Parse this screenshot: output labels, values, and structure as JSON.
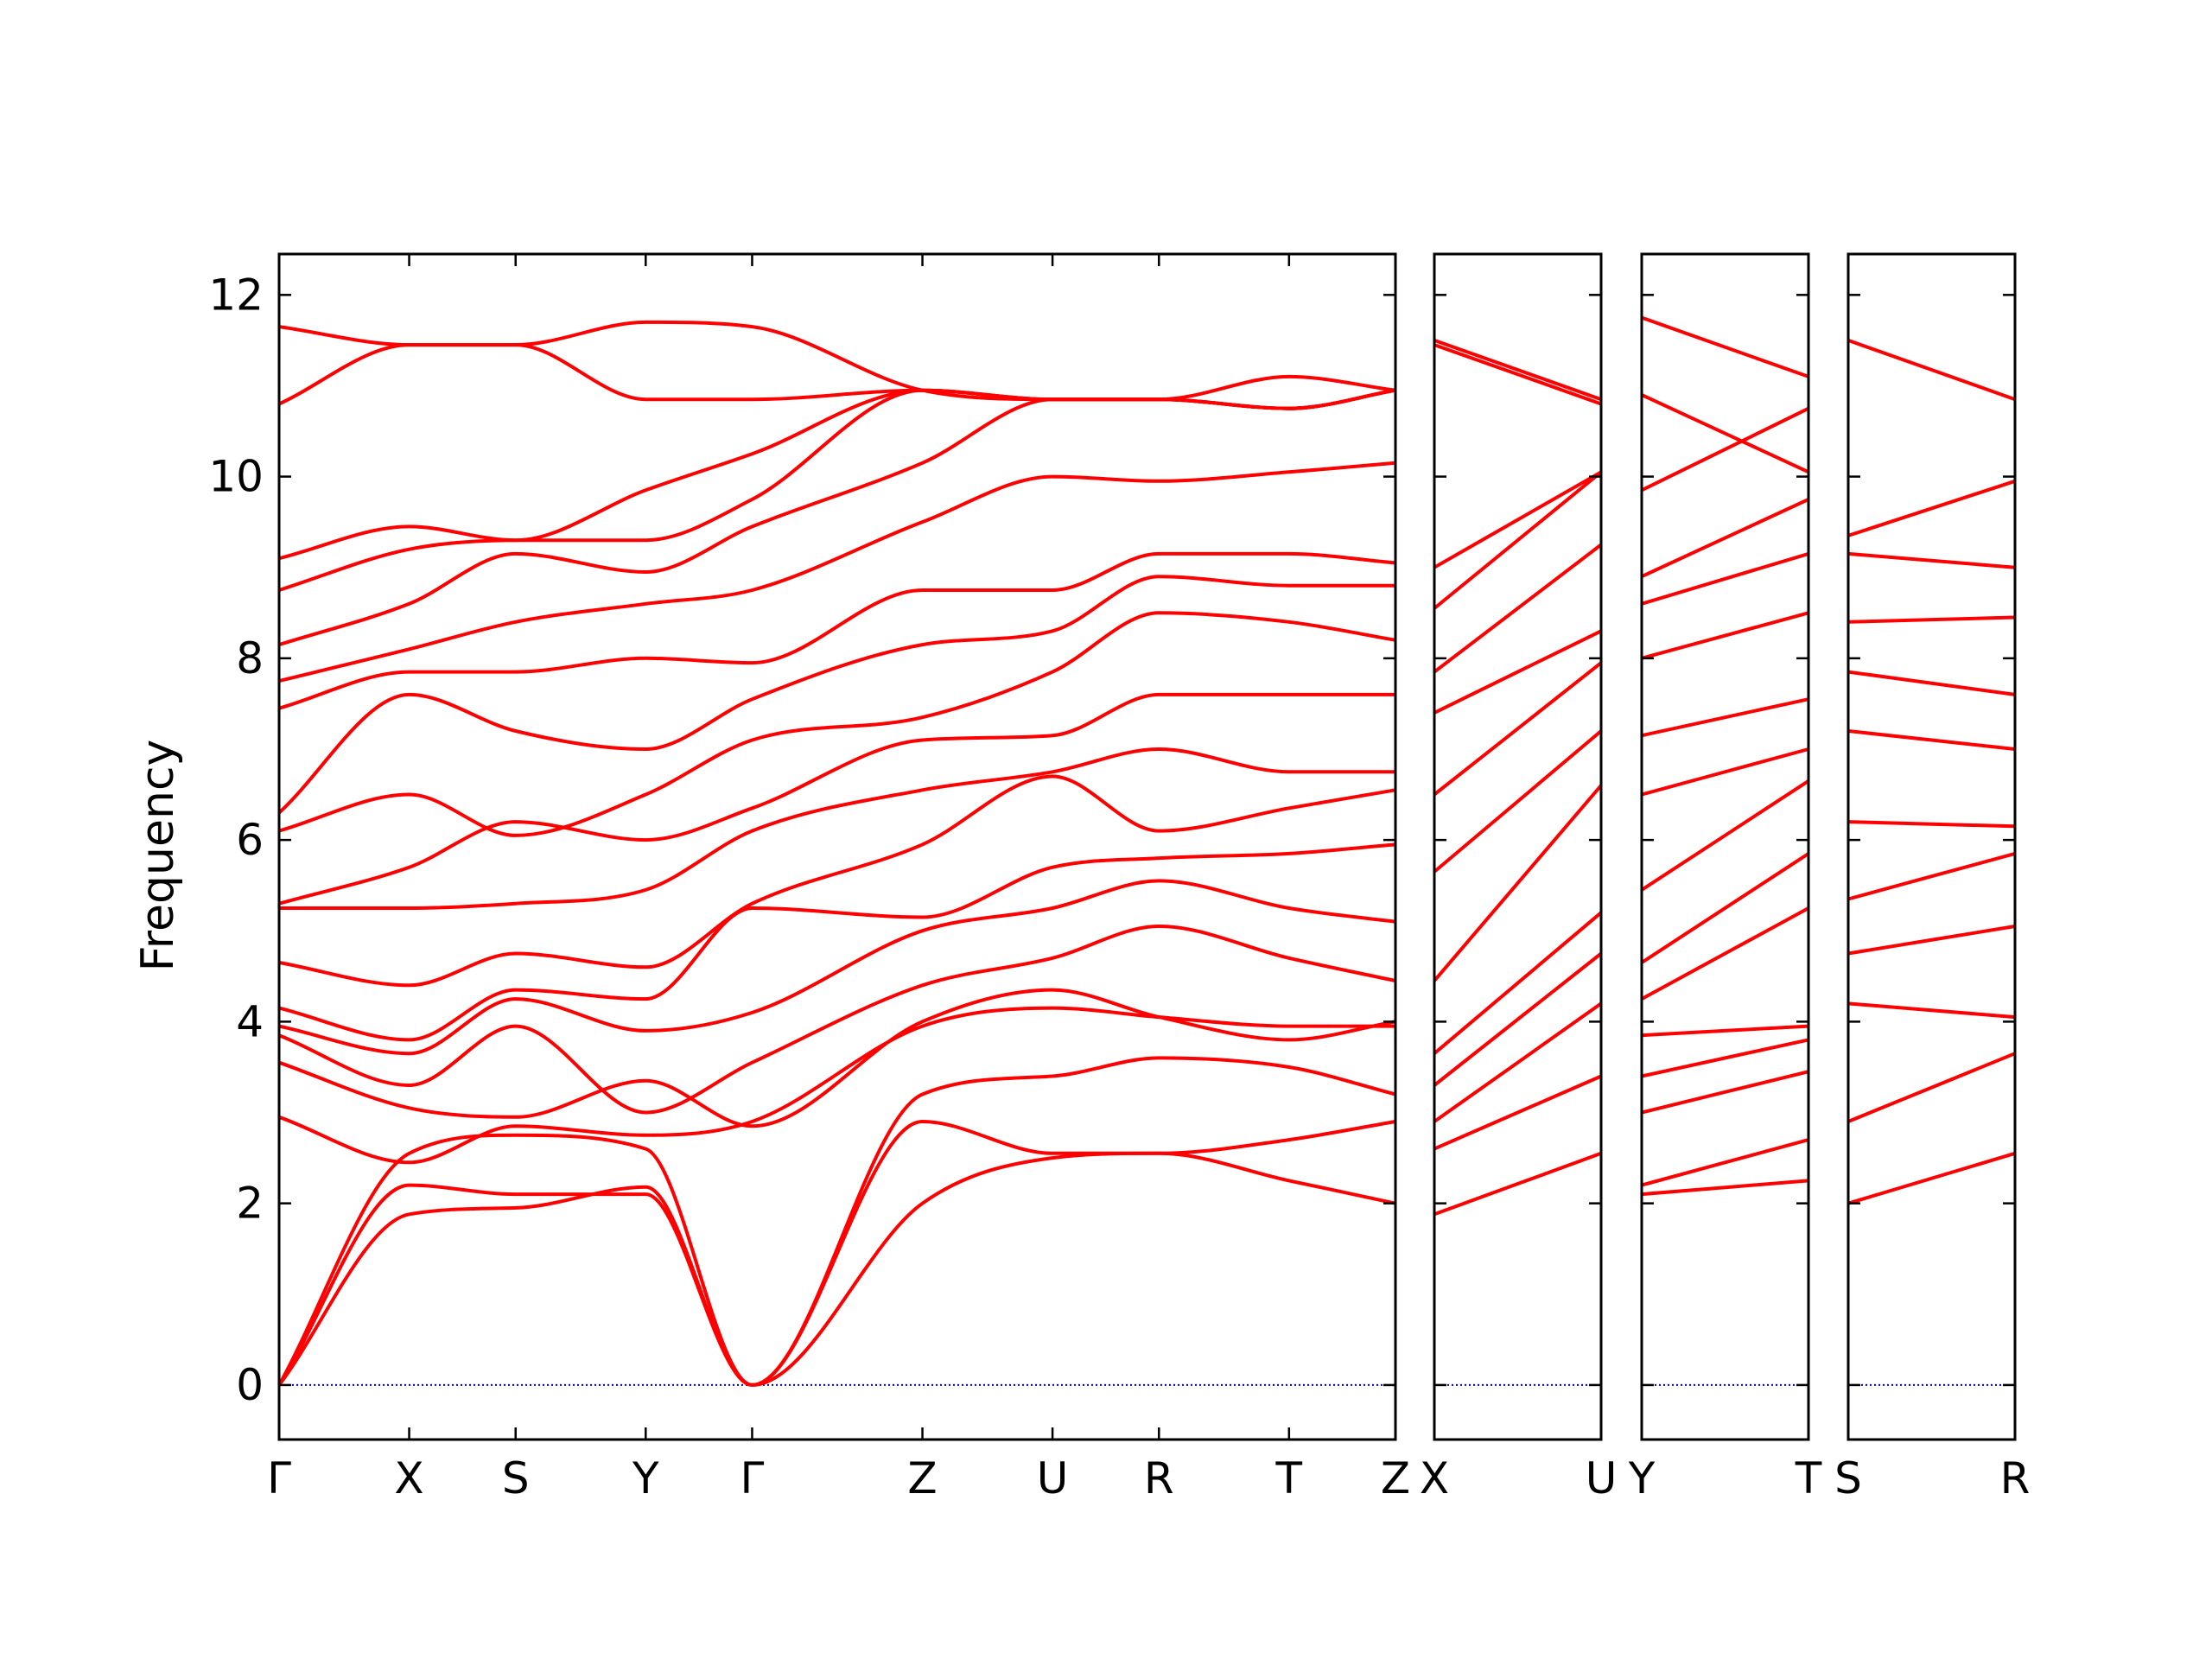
{
  "chart_data": {
    "type": "line",
    "title": "",
    "xlabel": "",
    "ylabel": "Frequency",
    "ylim": [
      -0.6,
      12.45
    ],
    "yticks": [
      "0",
      "2",
      "4",
      "6",
      "8",
      "10",
      "12"
    ],
    "grid": false,
    "legend": "none",
    "colors": {
      "bands": "#ff0000",
      "zero_line": "#0000cc",
      "axes": "#000000"
    },
    "panels": [
      {
        "path": [
          "Γ",
          "X",
          "S",
          "Y",
          "Γ",
          "Z",
          "U",
          "R",
          "T",
          "Z"
        ],
        "x": [
          0,
          0.55,
          1.0,
          1.55,
          2.0,
          2.72,
          3.27,
          3.72,
          4.27,
          4.72
        ],
        "bands": [
          [
            0,
            1.88,
            1.95,
            2.18,
            0,
            2.0,
            2.5,
            2.55,
            2.25,
            2.0
          ],
          [
            0,
            2.2,
            2.1,
            2.1,
            0,
            2.9,
            2.55,
            2.55,
            2.7,
            2.9
          ],
          [
            0,
            2.55,
            2.75,
            2.6,
            0,
            3.2,
            3.4,
            3.6,
            3.5,
            3.2
          ],
          [
            2.95,
            2.45,
            2.85,
            2.75,
            2.9,
            3.95,
            4.15,
            4.05,
            3.95,
            3.95
          ],
          [
            3.55,
            3.05,
            2.95,
            3.35,
            2.85,
            4.0,
            4.35,
            4.05,
            3.8,
            4.0
          ],
          [
            3.85,
            3.3,
            3.95,
            3.0,
            3.55,
            4.4,
            4.7,
            5.05,
            4.7,
            4.45
          ],
          [
            3.95,
            3.65,
            4.25,
            3.9,
            4.1,
            5.0,
            5.25,
            5.55,
            5.25,
            5.1
          ],
          [
            4.15,
            3.8,
            4.35,
            4.25,
            5.25,
            5.15,
            5.7,
            5.8,
            5.85,
            5.95
          ],
          [
            4.65,
            4.4,
            4.75,
            4.6,
            5.3,
            5.95,
            6.7,
            6.1,
            6.35,
            6.55
          ],
          [
            5.25,
            5.25,
            5.3,
            5.45,
            6.1,
            6.55,
            6.75,
            7.0,
            6.75,
            6.75
          ],
          [
            5.3,
            5.7,
            6.2,
            6.0,
            6.35,
            7.1,
            7.15,
            7.6,
            7.6,
            7.6
          ],
          [
            6.1,
            6.5,
            6.05,
            6.5,
            7.1,
            7.35,
            7.85,
            8.5,
            8.4,
            8.2
          ],
          [
            6.3,
            7.6,
            7.2,
            7.0,
            7.55,
            8.15,
            8.3,
            8.9,
            8.8,
            8.8
          ],
          [
            7.45,
            7.85,
            7.85,
            8.0,
            7.95,
            8.75,
            8.75,
            9.15,
            9.15,
            9.05
          ],
          [
            7.75,
            8.1,
            8.4,
            8.6,
            8.75,
            9.5,
            10.0,
            9.95,
            10.05,
            10.15
          ],
          [
            8.15,
            8.6,
            9.15,
            8.95,
            9.45,
            10.15,
            10.85,
            10.85,
            11.1,
            10.95
          ],
          [
            8.75,
            9.2,
            9.3,
            9.3,
            9.75,
            10.95,
            10.85,
            10.85,
            10.75,
            10.95
          ],
          [
            9.1,
            9.45,
            9.3,
            9.85,
            10.25,
            10.95,
            10.85,
            10.85,
            10.75,
            10.95
          ],
          [
            10.8,
            11.45,
            11.45,
            10.85,
            10.85,
            10.95,
            10.85,
            10.85,
            10.75,
            10.95
          ],
          [
            11.65,
            11.45,
            11.45,
            11.7,
            11.65,
            10.95,
            10.85,
            10.85,
            10.75,
            10.95
          ]
        ]
      },
      {
        "path": [
          "X",
          "U"
        ],
        "x": [
          0,
          1
        ],
        "bands": [
          [
            1.88,
            2.55
          ],
          [
            2.6,
            3.4
          ],
          [
            2.9,
            4.2
          ],
          [
            3.3,
            4.75
          ],
          [
            3.65,
            5.2
          ],
          [
            4.45,
            6.6
          ],
          [
            5.65,
            7.2
          ],
          [
            6.5,
            7.95
          ],
          [
            7.4,
            8.3
          ],
          [
            7.85,
            9.25
          ],
          [
            8.55,
            10.05
          ],
          [
            9.0,
            10.05
          ],
          [
            11.45,
            10.8
          ],
          [
            11.5,
            10.85
          ]
        ]
      },
      {
        "path": [
          "Y",
          "T"
        ],
        "x": [
          0,
          1
        ],
        "bands": [
          [
            2.1,
            2.25
          ],
          [
            2.2,
            2.7
          ],
          [
            3.0,
            3.45
          ],
          [
            3.4,
            3.8
          ],
          [
            3.85,
            3.95
          ],
          [
            4.25,
            5.25
          ],
          [
            4.65,
            5.85
          ],
          [
            5.45,
            6.65
          ],
          [
            6.5,
            7.0
          ],
          [
            7.15,
            7.55
          ],
          [
            8.0,
            8.5
          ],
          [
            8.6,
            9.15
          ],
          [
            8.9,
            9.75
          ],
          [
            9.85,
            10.75
          ],
          [
            10.9,
            10.05
          ],
          [
            11.75,
            11.1
          ]
        ]
      },
      {
        "path": [
          "S",
          "R"
        ],
        "x": [
          0,
          1
        ],
        "bands": [
          [
            2.0,
            2.55
          ],
          [
            2.9,
            3.65
          ],
          [
            4.2,
            4.05
          ],
          [
            4.75,
            5.05
          ],
          [
            5.35,
            5.85
          ],
          [
            6.2,
            6.15
          ],
          [
            7.2,
            7.0
          ],
          [
            7.85,
            7.6
          ],
          [
            8.4,
            8.45
          ],
          [
            9.15,
            9.0
          ],
          [
            9.35,
            9.95
          ],
          [
            11.5,
            10.85
          ]
        ]
      }
    ]
  }
}
